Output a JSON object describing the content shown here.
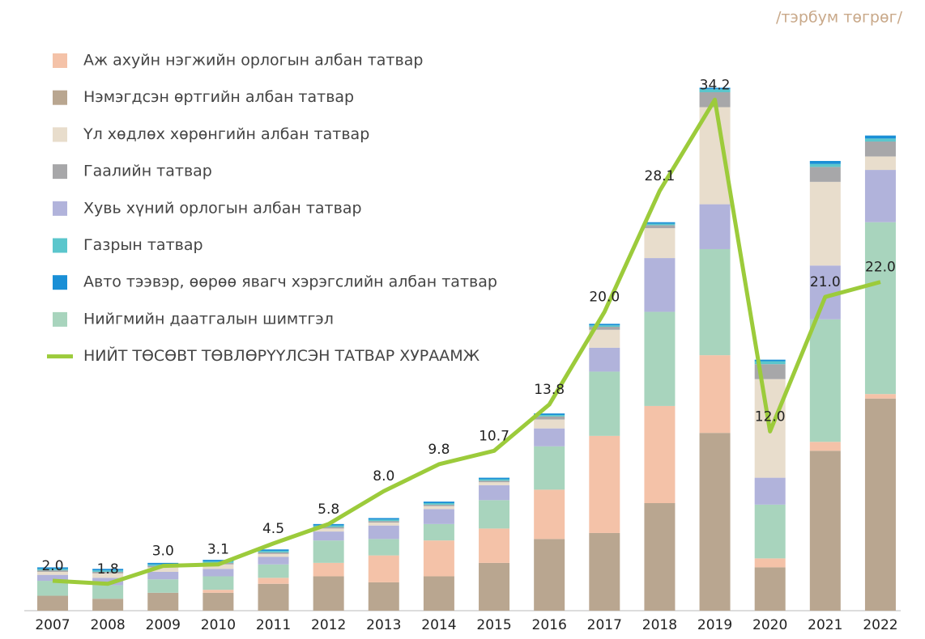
{
  "chart_data": {
    "type": "stacked-bar-line",
    "unit_note": "/тэрбум төгрөг/",
    "categories": [
      "2007",
      "2008",
      "2009",
      "2010",
      "2011",
      "2012",
      "2013",
      "2014",
      "2015",
      "2016",
      "2017",
      "2018",
      "2019",
      "2020",
      "2021",
      "2022"
    ],
    "ylim": [
      0,
      36
    ],
    "series": [
      {
        "name": "Аж ахуйн нэгжийн орлогын албан татвар",
        "color": "#f4c2a8",
        "values": [
          0,
          0,
          0,
          0.2,
          0.4,
          0.9,
          1.8,
          2.4,
          2.3,
          3.3,
          6.5,
          6.5,
          5.2,
          0.6,
          0.6,
          0.3
        ]
      },
      {
        "name": "Нэмэгдсэн өртгийн албан татвар",
        "color": "#b9a690",
        "values": [
          1.0,
          0.8,
          1.2,
          1.2,
          1.8,
          2.3,
          1.9,
          2.3,
          3.2,
          4.8,
          5.2,
          7.2,
          11.9,
          2.9,
          10.7,
          14.2
        ]
      },
      {
        "name": "Үл хөдлөх хөрөнгийн албан татвар",
        "color": "#e8ddcc",
        "values": [
          0.2,
          0.3,
          0.3,
          0.3,
          0.2,
          0.2,
          0.2,
          0.2,
          0.2,
          0.6,
          1.2,
          2.0,
          6.5,
          6.6,
          5.6,
          0.9
        ]
      },
      {
        "name": "Гаалийн татвар",
        "color": "#a7a7a9",
        "values": [
          0.1,
          0.1,
          0.1,
          0.1,
          0.1,
          0.1,
          0.1,
          0.1,
          0.1,
          0.2,
          0.2,
          0.2,
          1.0,
          1.0,
          1.0,
          1.0
        ]
      },
      {
        "name": "Хувь хүний орлогын албан татвар",
        "color": "#b1b3db",
        "values": [
          0.4,
          0.5,
          0.5,
          0.5,
          0.5,
          0.6,
          0.9,
          1.0,
          1.0,
          1.2,
          1.6,
          3.6,
          3.0,
          1.8,
          3.6,
          3.5
        ]
      },
      {
        "name": "Газрын татвар",
        "color": "#5bc6cc",
        "values": [
          0.1,
          0.1,
          0.1,
          0.1,
          0.1,
          0.1,
          0.1,
          0.1,
          0.1,
          0.1,
          0.1,
          0.1,
          0.2,
          0.2,
          0.2,
          0.2
        ]
      },
      {
        "name": "Авто тээвэр, өөрөө явагч хэрэгслийн албан татвар",
        "color": "#1a8fd6",
        "values": [
          0.1,
          0.1,
          0.1,
          0.1,
          0.1,
          0.1,
          0.1,
          0.1,
          0.1,
          0.1,
          0.1,
          0.1,
          0.1,
          0.1,
          0.2,
          0.2
        ]
      },
      {
        "name": "Нийгмийн даатгалын шимтгэл",
        "color": "#a8d4bd",
        "values": [
          1.0,
          0.9,
          0.9,
          0.9,
          0.9,
          1.5,
          1.1,
          1.1,
          1.9,
          2.9,
          4.3,
          6.3,
          7.1,
          3.6,
          8.2,
          11.5
        ]
      }
    ],
    "line": {
      "name": "НИЙТ ТӨСӨВТ ТӨВЛӨРҮҮЛСЭН ТАТВАР ХУРААМЖ",
      "color": "#9ccb3b",
      "values": [
        2,
        1.8,
        3,
        3.1,
        4.5,
        5.8,
        8,
        9.8,
        10.7,
        13.8,
        20,
        28.1,
        34.2,
        12,
        21,
        22
      ],
      "value_labels": [
        "2.0",
        "1.8",
        "3.0",
        "3.1",
        "4.5",
        "5.8",
        "8.0",
        "9.8",
        "10.7",
        "13.8",
        "20.0",
        "28.1",
        "34.2",
        "12.0",
        "21.0",
        "22.0"
      ]
    }
  }
}
